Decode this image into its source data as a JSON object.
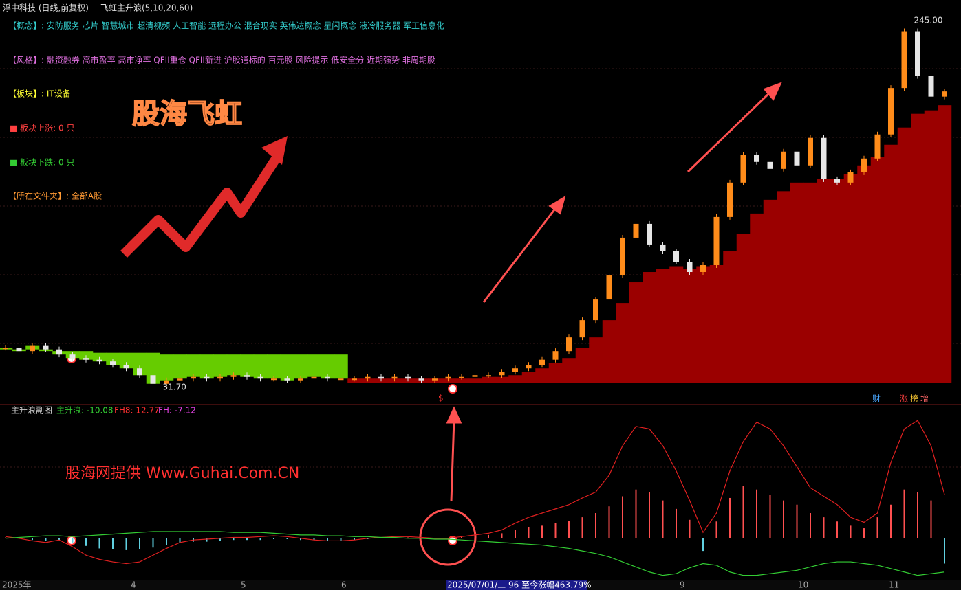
{
  "ui": {
    "stock": "浮中科技 (日线,前复权)",
    "indicator": "飞虹主升浪(5,10,20,60)",
    "concept": "【概念】: 安防服务 芯片 智慧城市 超清视频 人工智能 远程办公 混合现实 英伟达概念 星闪概念 液冷服务器 军工信息化",
    "style": "【风格】: 融资融券 高市盈率 高市净率 QFII重仓 QFII新进 沪股通标的 百元股 风险提示 低安全分 近期强势 非周期股",
    "sector": "【板块】: IT设备",
    "sector_up": "■ 板块上涨: 0 只",
    "sector_down": "■ 板块下跌: 0 只",
    "folder": "【所在文件夹】: 全部A股",
    "logo": "股海飞虹",
    "watermark": "股海网提供 Www.Guhai.Com.CN",
    "sub_title": "主升浪副图",
    "sub_main": "主升浪: -10.08",
    "sub_fh8": "FH8: 12.77",
    "sub_fh": "FH: -7.12",
    "date_banner": "2025/07/01/二 96 至今涨幅463.79%",
    "signal": "$",
    "x_labels": [
      "2025年",
      "4",
      "5",
      "6",
      "9",
      "10",
      "11"
    ],
    "icons": [
      "财",
      "涨",
      "榜",
      "增"
    ]
  },
  "chart_data": {
    "type": "candlestick",
    "closes": [
      54,
      52,
      55,
      53,
      50,
      48,
      47,
      46,
      44,
      42,
      38,
      33,
      35,
      36,
      37,
      36,
      37,
      38,
      37,
      36,
      36,
      35,
      36,
      37,
      36,
      36,
      36,
      37,
      36,
      37,
      36,
      35,
      36,
      37,
      37,
      38,
      38,
      40,
      42,
      44,
      47,
      52,
      60,
      70,
      82,
      96,
      118,
      126,
      114,
      110,
      104,
      98,
      102,
      130,
      150,
      166,
      162,
      158,
      168,
      160,
      176,
      152,
      150,
      156,
      164,
      178,
      205,
      238,
      212,
      200,
      203
    ],
    "up_color": "#ff8c1a",
    "down_color": "#e6e6e6",
    "high": {
      "value": 245,
      "label": "245.00"
    },
    "low": {
      "value": 31.7,
      "label": "31.70"
    },
    "green_band": {
      "color": "#66cc00",
      "values": [
        53,
        53,
        53,
        52,
        52,
        52,
        52,
        51,
        51,
        51,
        51,
        51,
        50,
        50,
        50,
        50,
        50,
        50,
        50,
        50,
        50,
        50,
        50,
        50,
        50,
        50,
        null,
        null,
        null,
        null,
        null,
        null,
        null,
        null,
        null,
        null,
        null,
        null,
        null,
        null,
        null,
        null,
        null,
        null,
        null,
        null,
        null,
        null,
        null,
        null,
        null,
        null,
        null,
        null,
        null,
        null,
        null,
        null,
        null,
        null,
        null,
        null,
        null,
        null,
        null,
        null,
        null,
        null,
        null,
        null,
        null
      ]
    },
    "red_band": {
      "color": "#9b0000",
      "values": [
        null,
        null,
        null,
        null,
        null,
        null,
        null,
        null,
        null,
        null,
        null,
        null,
        null,
        null,
        null,
        null,
        null,
        null,
        null,
        null,
        null,
        null,
        null,
        null,
        null,
        null,
        36,
        36,
        36,
        36,
        36,
        36,
        36,
        36,
        36,
        36,
        37,
        37,
        38,
        40,
        42,
        45,
        48,
        54,
        60,
        70,
        80,
        92,
        98,
        100,
        101,
        100,
        101,
        102,
        110,
        120,
        132,
        140,
        145,
        150,
        150,
        152,
        152,
        155,
        160,
        165,
        172,
        182,
        190,
        192,
        195
      ]
    },
    "sub": {
      "ylim": [
        -50,
        150
      ],
      "red": {
        "color": "#e02020",
        "values": [
          2,
          0,
          -3,
          -5,
          -2,
          -10,
          -20,
          -25,
          -28,
          -30,
          -28,
          -20,
          -12,
          -5,
          -2,
          -1,
          0,
          1,
          1,
          2,
          3,
          2,
          0,
          -2,
          -3,
          -3,
          -2,
          0,
          1,
          2,
          2,
          1,
          0,
          0,
          2,
          4,
          6,
          10,
          18,
          25,
          30,
          35,
          40,
          48,
          55,
          75,
          110,
          133,
          130,
          110,
          80,
          45,
          7,
          30,
          80,
          115,
          138,
          130,
          110,
          85,
          60,
          50,
          40,
          25,
          19,
          30,
          90,
          130,
          140,
          110,
          52
        ]
      },
      "green": {
        "color": "#33cc33",
        "values": [
          0,
          1,
          2,
          3,
          3,
          2,
          3,
          4,
          5,
          6,
          7,
          8,
          8,
          8,
          8,
          8,
          8,
          7,
          7,
          7,
          6,
          5,
          4,
          4,
          3,
          3,
          2,
          2,
          1,
          1,
          0,
          0,
          -1,
          -1,
          -2,
          -3,
          -4,
          -5,
          -6,
          -7,
          -8,
          -10,
          -12,
          -15,
          -18,
          -22,
          -28,
          -34,
          -40,
          -44,
          -42,
          -35,
          -30,
          -32,
          -40,
          -44,
          -44,
          -42,
          -40,
          -38,
          -34,
          -30,
          -28,
          -28,
          -30,
          -32,
          -36,
          -40,
          -44,
          -42,
          -40
        ]
      },
      "hist": {
        "up_color": "#ff5050",
        "down_color": "#60d0e0",
        "values": [
          1,
          0,
          -2,
          -3,
          -2,
          -5,
          -9,
          -12,
          -13,
          -14,
          -13,
          -11,
          -8,
          -5,
          -4,
          -4,
          -3,
          -2,
          -2,
          -2,
          -1,
          -1,
          -2,
          -2,
          -3,
          -3,
          -2,
          -1,
          0,
          0,
          1,
          0,
          0,
          0,
          2,
          3,
          4,
          6,
          10,
          13,
          15,
          18,
          21,
          25,
          30,
          38,
          50,
          58,
          55,
          45,
          35,
          22,
          -15,
          20,
          48,
          62,
          58,
          52,
          45,
          40,
          30,
          25,
          20,
          15,
          12,
          25,
          40,
          58,
          55,
          45,
          -30
        ]
      }
    }
  }
}
